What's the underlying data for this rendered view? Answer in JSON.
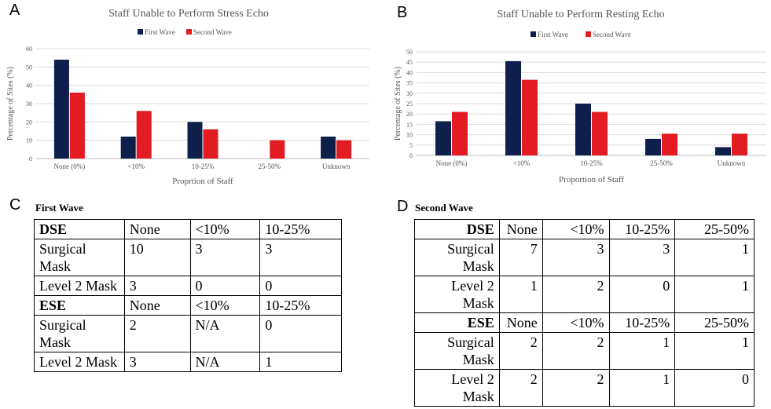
{
  "panels": {
    "a": "A",
    "b": "B",
    "c": "C",
    "d": "D"
  },
  "chart_data": [
    {
      "type": "bar",
      "title": "Staff Unable to Perform Stress Echo",
      "xlabel": "Proprtion of Staff",
      "ylabel": "Percentage of Sites (%)",
      "categories": [
        "None (0%)",
        "<10%",
        "10-25%",
        "25-50%",
        "Unknown"
      ],
      "series": [
        {
          "name": "First Wave",
          "color": "#0d1f4a",
          "values": [
            54,
            12,
            20,
            0,
            12
          ]
        },
        {
          "name": "Second Wave",
          "color": "#e31b23",
          "values": [
            36,
            26,
            16,
            10,
            10
          ]
        }
      ],
      "ylim": [
        0,
        60
      ],
      "yticks": [
        0,
        10,
        20,
        30,
        40,
        50,
        60
      ],
      "grid": true,
      "legend": "top"
    },
    {
      "type": "bar",
      "title": "Staff Unable to Perform Resting Echo",
      "xlabel": "Proportion of Staff",
      "ylabel": "Percentage of Sites (%)",
      "categories": [
        "None (0%)",
        "<10%",
        "10-25%",
        "25-50%",
        "Unknown"
      ],
      "series": [
        {
          "name": "First Wave",
          "color": "#0d1f4a",
          "values": [
            16.5,
            45.5,
            25,
            8,
            4
          ]
        },
        {
          "name": "Second Wave",
          "color": "#e31b23",
          "values": [
            21,
            36.5,
            21,
            10.5,
            10.5
          ]
        }
      ],
      "ylim": [
        0,
        50
      ],
      "yticks": [
        0,
        5,
        10,
        15,
        20,
        25,
        30,
        35,
        40,
        45,
        50
      ],
      "grid": true,
      "legend": "top"
    },
    {
      "type": "table",
      "title": "First Wave",
      "rows": [
        [
          "DSE",
          "None",
          "<10%",
          "10-25%"
        ],
        [
          "Surgical Mask",
          "10",
          "3",
          "3"
        ],
        [
          "Level 2 Mask",
          "3",
          "0",
          "0"
        ],
        [
          "ESE",
          "None",
          "<10%",
          "10-25%"
        ],
        [
          "Surgical Mask",
          "2",
          "N/A",
          "0"
        ],
        [
          "Level 2 Mask",
          "3",
          "N/A",
          "1"
        ]
      ]
    },
    {
      "type": "table",
      "title": "Second Wave",
      "rows": [
        [
          "DSE",
          "None",
          "<10%",
          "10-25%",
          "25-50%"
        ],
        [
          "Surgical Mask",
          "7",
          "3",
          "3",
          "1"
        ],
        [
          "Level 2 Mask",
          "1",
          "2",
          "0",
          "1"
        ],
        [
          "ESE",
          "None",
          "<10%",
          "10-25%",
          "25-50%"
        ],
        [
          "Surgical Mask",
          "2",
          "2",
          "1",
          "1"
        ],
        [
          "Level 2 Mask",
          "2",
          "2",
          "1",
          "0"
        ]
      ]
    }
  ]
}
